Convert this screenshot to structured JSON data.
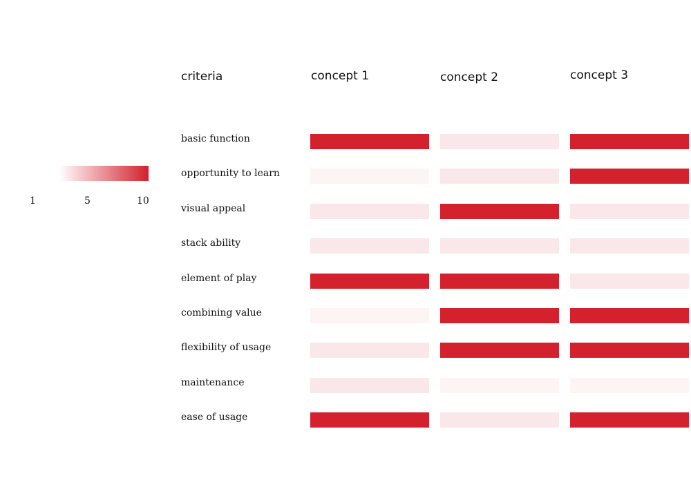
{
  "colors": {
    "max": "#d3212d"
  },
  "legend": {
    "ticks": [
      "1",
      "5",
      "10"
    ],
    "min": 1,
    "max": 10
  },
  "chart_data": {
    "type": "heatmap",
    "column_header": "criteria",
    "columns": [
      "concept 1",
      "concept 2",
      "concept 3"
    ],
    "rows": [
      {
        "criterion": "basic function",
        "values": [
          10,
          3,
          10
        ]
      },
      {
        "criterion": "opportunity to learn",
        "values": [
          1,
          3,
          10
        ]
      },
      {
        "criterion": "visual appeal",
        "values": [
          3,
          10,
          3
        ]
      },
      {
        "criterion": "stack ability",
        "values": [
          3,
          3,
          3
        ]
      },
      {
        "criterion": "element of play",
        "values": [
          10,
          10,
          3
        ]
      },
      {
        "criterion": "combining value",
        "values": [
          1,
          10,
          10
        ]
      },
      {
        "criterion": "flexibility of usage",
        "values": [
          3,
          10,
          10
        ]
      },
      {
        "criterion": "maintenance",
        "values": [
          3,
          1,
          1
        ]
      },
      {
        "criterion": "ease of usage",
        "values": [
          10,
          3,
          10
        ]
      }
    ]
  }
}
